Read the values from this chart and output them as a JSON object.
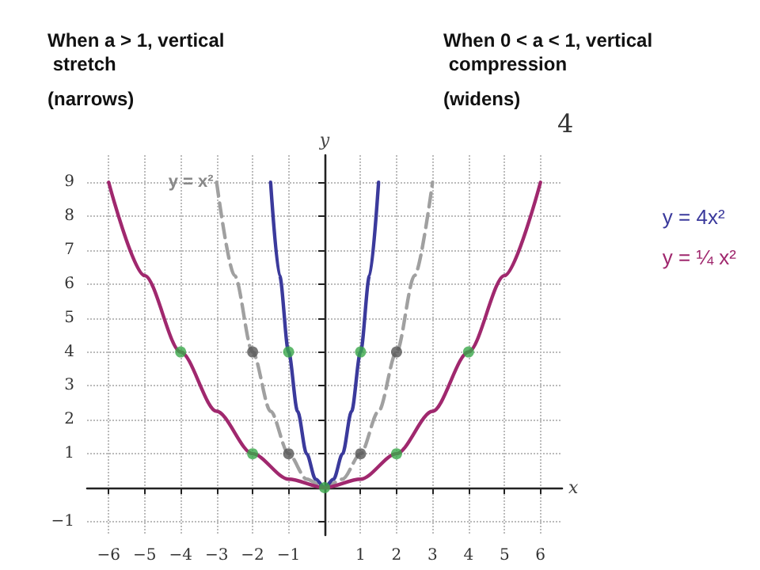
{
  "chart_data": {
    "type": "line",
    "xlabel": "x",
    "ylabel": "y",
    "xlim": [
      -6.6,
      6.6
    ],
    "ylim": [
      -1.4,
      9.8
    ],
    "xticks": [
      -6,
      -5,
      -4,
      -3,
      -2,
      -1,
      {
        "value": 0,
        "label": null
      },
      1,
      2,
      3,
      4,
      5,
      6
    ],
    "yticks": [
      -1,
      {
        "value": 0,
        "label": null
      },
      1,
      2,
      3,
      4,
      5,
      6,
      7,
      8,
      9
    ],
    "grid": true,
    "legend": "right",
    "annotations": [
      "When a > 1, vertical stretch",
      "(narrows)",
      "When 0 < a < 1, vertical compression",
      "(widens)",
      "4"
    ],
    "series": [
      {
        "name": "y = x²",
        "color": "#a0a0a0",
        "line_style": "dashed",
        "marker": "none",
        "x": [
          -3,
          -2.5,
          -2,
          -1.5,
          -1,
          -0.5,
          0,
          0.5,
          1,
          1.5,
          2,
          2.5,
          3
        ],
        "values": [
          9,
          6.25,
          4,
          2.25,
          1,
          0.25,
          0,
          0.25,
          1,
          2.25,
          4,
          6.25,
          9
        ]
      },
      {
        "name": "y = 4x²",
        "color": "#3b3a9c",
        "line_style": "solid",
        "marker": "none",
        "x": [
          -1.5,
          -1.25,
          -1,
          -0.75,
          -0.5,
          -0.25,
          0,
          0.25,
          0.5,
          0.75,
          1,
          1.25,
          1.5
        ],
        "values": [
          9,
          6.25,
          4,
          2.25,
          1,
          0.25,
          0,
          0.25,
          1,
          2.25,
          4,
          6.25,
          9
        ]
      },
      {
        "name": "y = ¼ x²",
        "color": "#a0286e",
        "line_style": "solid",
        "marker": "none",
        "x": [
          -6,
          -5,
          -4,
          -3,
          -2,
          -1,
          0,
          1,
          2,
          3,
          4,
          5,
          6
        ],
        "values": [
          9,
          6.25,
          4,
          2.25,
          1,
          0.25,
          0,
          0.25,
          1,
          2.25,
          4,
          6.25,
          9
        ]
      },
      {
        "type": "scatter",
        "color": "#555555",
        "marker": "circle",
        "x": [
          -2,
          -1,
          1,
          2
        ],
        "values": [
          4,
          1,
          1,
          4
        ]
      },
      {
        "type": "scatter",
        "color": "#3aa84a",
        "marker": "circle",
        "x": [
          -4,
          -2,
          -1,
          0,
          1,
          2,
          4
        ],
        "values": [
          4,
          1,
          4,
          0,
          4,
          1,
          4
        ]
      }
    ]
  }
}
